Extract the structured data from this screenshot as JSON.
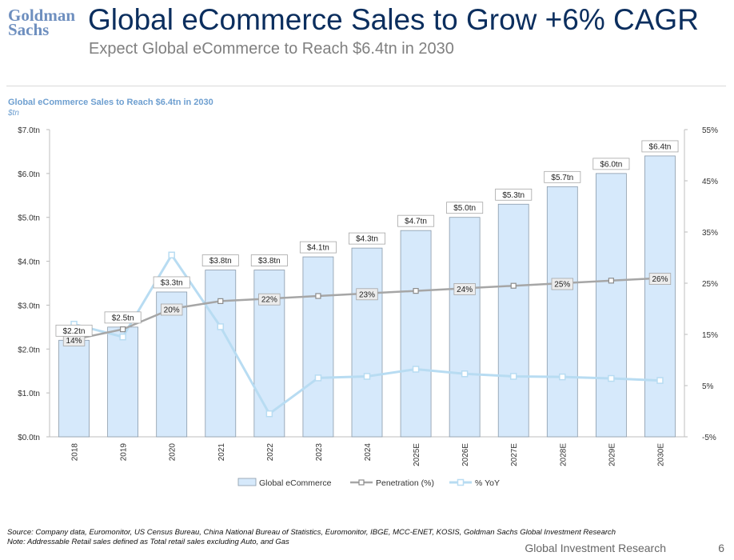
{
  "header": {
    "logo_line1": "Goldman",
    "logo_line2": "Sachs",
    "title": "Global eCommerce Sales to Grow +6% CAGR",
    "subtitle": "Expect Global eCommerce to Reach $6.4tn in 2030"
  },
  "chart_data": {
    "type": "bar",
    "title": "Global eCommerce Sales to Reach $6.4tn in 2030",
    "unit_label": "$tn",
    "categories": [
      "2018",
      "2019",
      "2020",
      "2021",
      "2022",
      "2023",
      "2024",
      "2025E",
      "2026E",
      "2027E",
      "2028E",
      "2029E",
      "2030E"
    ],
    "series": [
      {
        "name": "Global eCommerce",
        "type": "bar",
        "axis": "left",
        "values": [
          2.2,
          2.5,
          3.3,
          3.8,
          3.8,
          4.1,
          4.3,
          4.7,
          5.0,
          5.3,
          5.7,
          6.0,
          6.4
        ],
        "labels": [
          "$2.2tn",
          "$2.5tn",
          "$3.3tn",
          "$3.8tn",
          "$3.8tn",
          "$4.1tn",
          "$4.3tn",
          "$4.7tn",
          "$5.0tn",
          "$5.3tn",
          "$5.7tn",
          "$6.0tn",
          "$6.4tn"
        ]
      },
      {
        "name": "Penetration (%)",
        "type": "line",
        "axis": "right",
        "values": [
          14,
          16,
          20,
          21.5,
          22,
          22.5,
          23,
          23.5,
          24,
          24.5,
          25,
          25.5,
          26
        ],
        "labels": [
          "14%",
          "",
          "20%",
          "",
          "22%",
          "",
          "23%",
          "",
          "24%",
          "",
          "25%",
          "",
          "26%"
        ]
      },
      {
        "name": "% YoY",
        "type": "line",
        "axis": "right",
        "values": [
          17,
          14.5,
          30.5,
          16.5,
          -0.5,
          6.5,
          6.8,
          8.2,
          7.3,
          6.8,
          6.7,
          6.4,
          6.0
        ]
      }
    ],
    "y_left": {
      "min": 0,
      "max": 7,
      "ticks": [
        0,
        1,
        2,
        3,
        4,
        5,
        6,
        7
      ],
      "tick_labels": [
        "$0.0tn",
        "$1.0tn",
        "$2.0tn",
        "$3.0tn",
        "$4.0tn",
        "$5.0tn",
        "$6.0tn",
        "$7.0tn"
      ]
    },
    "y_right": {
      "min": -5,
      "max": 55,
      "ticks": [
        -5,
        5,
        15,
        25,
        35,
        45,
        55
      ],
      "tick_labels": [
        "-5%",
        "5%",
        "15%",
        "25%",
        "35%",
        "45%",
        "55%"
      ]
    },
    "legend_position": "bottom",
    "colors": {
      "bar_fill": "#d6e9fb",
      "bar_stroke": "#8a9aaa",
      "penetration_line": "#a6a6a6",
      "yoy_line": "#b8dcf2",
      "axis_text": "#333333"
    }
  },
  "footer": {
    "source": "Source: Company data, Euromonitor, US Census Bureau, China National Bureau of Statistics, Euromonitor, IBGE, MCC-ENET, KOSIS, Goldman Sachs Global Investment Research",
    "note": "Note: Addressable Retail sales defined as Total retail sales excluding Auto, and Gas",
    "department": "Global Investment Research",
    "page_number": "6"
  }
}
